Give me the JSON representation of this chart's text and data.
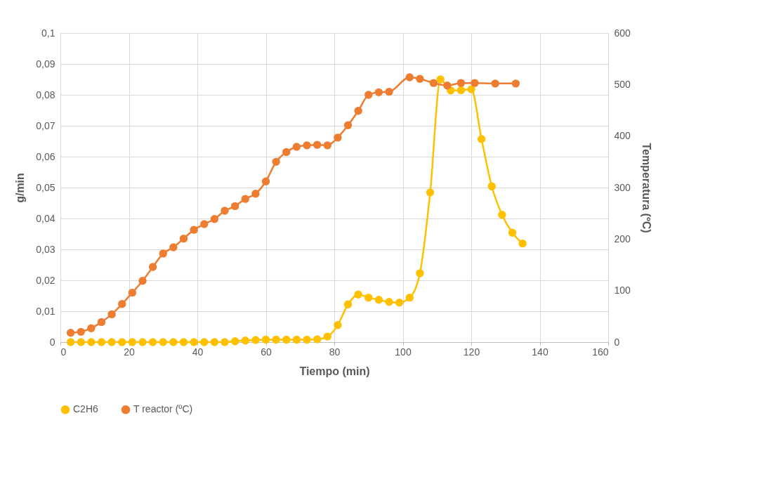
{
  "chart_data": {
    "type": "line",
    "xlabel": "Tiempo (min)",
    "ylabel": "g/min",
    "y2label": "Temperatura (ºC)",
    "xlim": [
      0,
      160
    ],
    "xticks": [
      0,
      20,
      40,
      60,
      80,
      100,
      120,
      140,
      160
    ],
    "ylim": [
      0,
      0.1
    ],
    "yticks": [
      0,
      {
        "value": 0.01,
        "label": "0,01"
      },
      {
        "value": 0.02,
        "label": "0,02"
      },
      {
        "value": 0.03,
        "label": "0,03"
      },
      {
        "value": 0.04,
        "label": "0,04"
      },
      {
        "value": 0.05,
        "label": "0,05"
      },
      {
        "value": 0.06,
        "label": "0,06"
      },
      {
        "value": 0.07,
        "label": "0,07"
      },
      {
        "value": 0.08,
        "label": "0,08"
      },
      {
        "value": 0.09,
        "label": "0,09"
      },
      {
        "value": 0.1,
        "label": "0,1"
      }
    ],
    "y2lim": [
      0,
      600
    ],
    "y2ticks": [
      0,
      100,
      200,
      300,
      400,
      500,
      600
    ],
    "grid": true,
    "legend": "bottom",
    "marker": "circle",
    "line_style": "solid",
    "series": [
      {
        "name": "C2H6",
        "color": "#ffc000",
        "x": [
          3,
          6,
          9,
          12,
          15,
          18,
          21,
          24,
          27,
          30,
          33,
          36,
          39,
          42,
          45,
          48,
          51,
          54,
          57,
          60,
          63,
          66,
          69,
          72,
          75,
          78,
          81,
          84,
          87,
          90,
          93,
          96,
          99,
          102,
          105,
          108,
          111,
          114,
          117,
          120,
          123,
          126,
          129,
          132,
          135
        ],
        "values": [
          0,
          0,
          0,
          0,
          0,
          0,
          0,
          0,
          0,
          0,
          0,
          0,
          0,
          0,
          0,
          0,
          0.0003,
          0.0005,
          0.0007,
          0.0008,
          0.0008,
          0.0008,
          0.0008,
          0.0008,
          0.0009,
          0.0018,
          0.0055,
          0.0122,
          0.0154,
          0.0144,
          0.0137,
          0.013,
          0.0128,
          0.0144,
          0.0223,
          0.0484,
          0.085,
          0.0814,
          0.0815,
          0.0818,
          0.0657,
          0.0504,
          0.0412,
          0.0354,
          0.0319
        ]
      },
      {
        "name": "T reactor (ºC)",
        "color": "#ed7d31",
        "axis": "y2",
        "x": [
          3,
          6,
          9,
          12,
          15,
          18,
          21,
          24,
          27,
          30,
          33,
          36,
          39,
          42,
          45,
          48,
          51,
          54,
          57,
          60,
          63,
          66,
          69,
          72,
          75,
          78,
          81,
          84,
          87,
          90,
          93,
          96,
          102,
          105,
          109,
          113,
          117,
          121,
          127,
          133
        ],
        "values": [
          18,
          20,
          27,
          39,
          54,
          74,
          96,
          119,
          146,
          172,
          184,
          201,
          218,
          229,
          239,
          255,
          264,
          278,
          288,
          312,
          350,
          369,
          379,
          382,
          383,
          382,
          397,
          421,
          449,
          480,
          485,
          486,
          514,
          511,
          503,
          498,
          503,
          503,
          502,
          502
        ]
      }
    ]
  }
}
